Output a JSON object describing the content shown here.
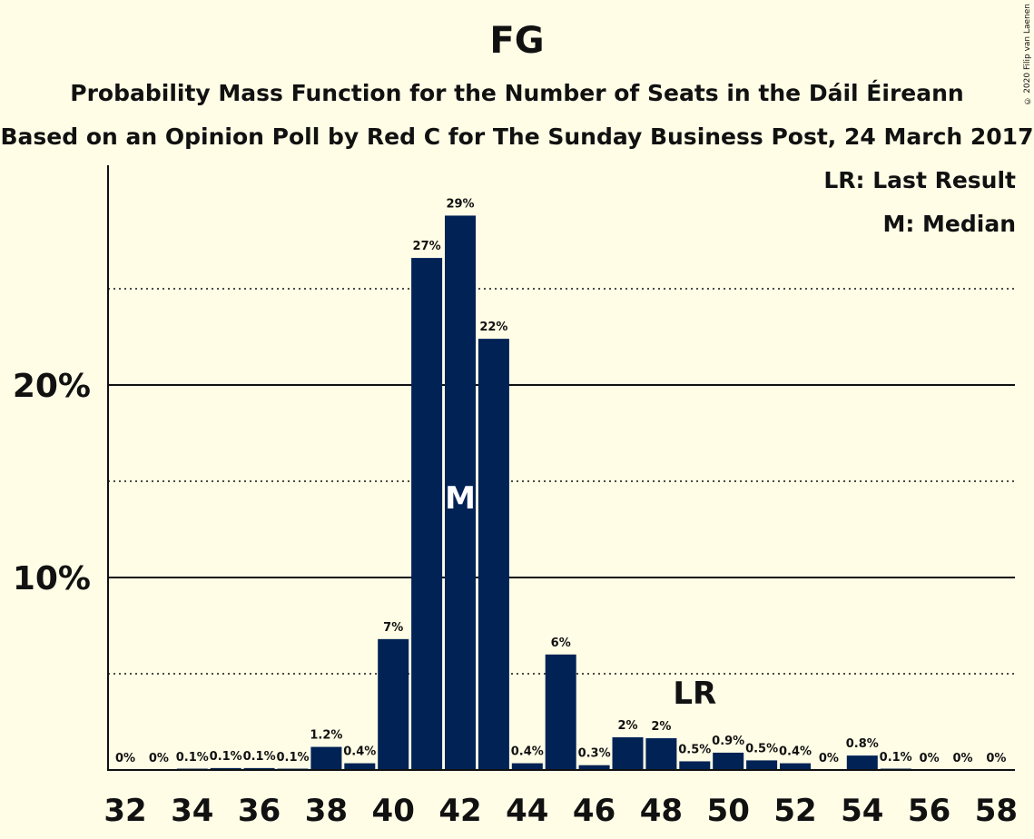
{
  "header": {
    "title": "FG",
    "subtitle": "Probability Mass Function for the Number of Seats in the Dáil Éireann",
    "source": "Based on an Opinion Poll by Red C for The Sunday Business Post, 24 March 2017",
    "copyright": "© 2020 Filip van Laenen"
  },
  "legend": {
    "last_result": "LR: Last Result",
    "median": "M: Median"
  },
  "colors": {
    "bar": "#002255",
    "background": "#fffde6"
  },
  "chart_data": {
    "type": "bar",
    "title": "FG",
    "xlabel": "",
    "ylabel": "",
    "ylim": [
      0,
      31.5
    ],
    "y_ticks": [
      10,
      20
    ],
    "y_tick_labels": [
      "10%",
      "20%"
    ],
    "y_dotted_lines": [
      5,
      15,
      25
    ],
    "x_tick_labels": [
      "32",
      "34",
      "36",
      "38",
      "40",
      "42",
      "44",
      "46",
      "48",
      "50",
      "52",
      "54",
      "56",
      "58"
    ],
    "categories": [
      32,
      33,
      34,
      35,
      36,
      37,
      38,
      39,
      40,
      41,
      42,
      43,
      44,
      45,
      46,
      47,
      48,
      49,
      50,
      51,
      52,
      53,
      54,
      55,
      56,
      57,
      58
    ],
    "values": [
      0,
      0,
      0.05,
      0.1,
      0.1,
      0.05,
      1.2,
      0.35,
      6.8,
      26.6,
      28.8,
      22.4,
      0.35,
      6.0,
      0.25,
      1.7,
      1.65,
      0.45,
      0.9,
      0.5,
      0.35,
      0,
      0.75,
      0.05,
      0,
      0,
      0
    ],
    "labels": [
      "0%",
      "0%",
      "0.1%",
      "0.1%",
      "0.1%",
      "0.1%",
      "1.2%",
      "0.4%",
      "7%",
      "27%",
      "29%",
      "22%",
      "0.4%",
      "6%",
      "0.3%",
      "2%",
      "2%",
      "0.5%",
      "0.9%",
      "0.5%",
      "0.4%",
      "0%",
      "0.8%",
      "0.1%",
      "0%",
      "0%",
      "0%"
    ],
    "median_seat": 42,
    "median_label": "M",
    "last_result_seat": 49,
    "last_result_label": "LR",
    "grid": true
  }
}
